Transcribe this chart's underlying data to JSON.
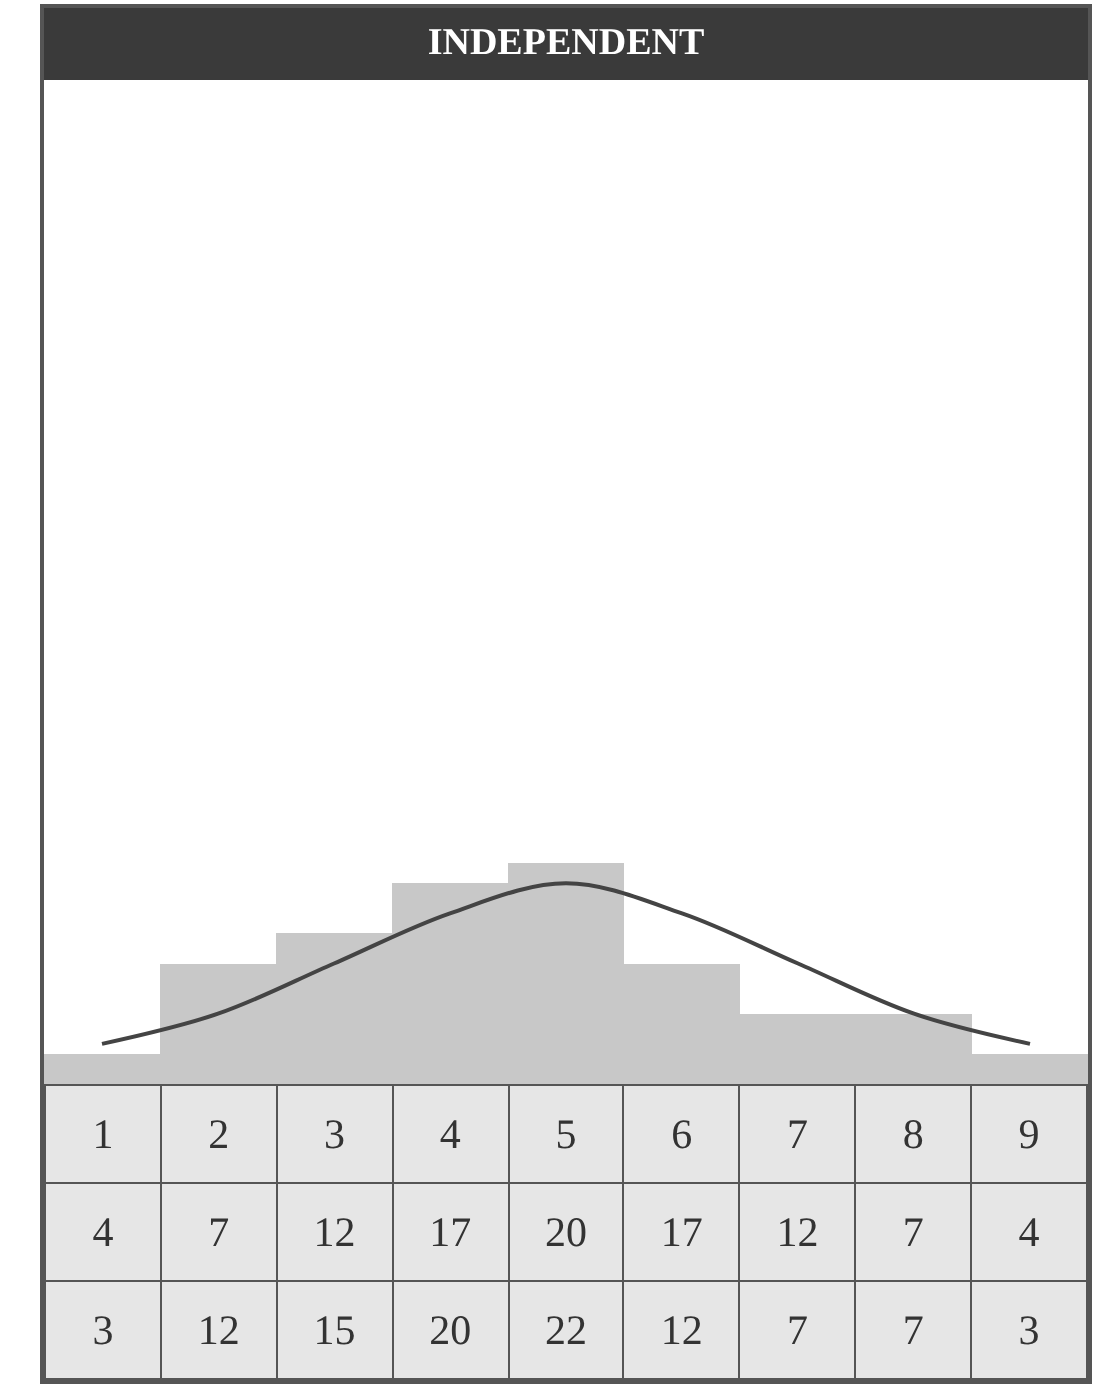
{
  "chart_data": {
    "type": "bar",
    "title": "INDEPENDENT",
    "categories": [
      "1",
      "2",
      "3",
      "4",
      "5",
      "6",
      "7",
      "8",
      "9"
    ],
    "series": [
      {
        "type": "line",
        "color": "#444444",
        "values": [
          4,
          7,
          12,
          17,
          20,
          17,
          12,
          7,
          4
        ]
      },
      {
        "color": "#c8c8c8",
        "values": [
          3,
          12,
          15,
          20,
          22,
          12,
          7,
          7,
          3
        ]
      }
    ],
    "ylim": [
      0,
      100
    ],
    "data_labels": true,
    "grid": false,
    "legend": false
  }
}
